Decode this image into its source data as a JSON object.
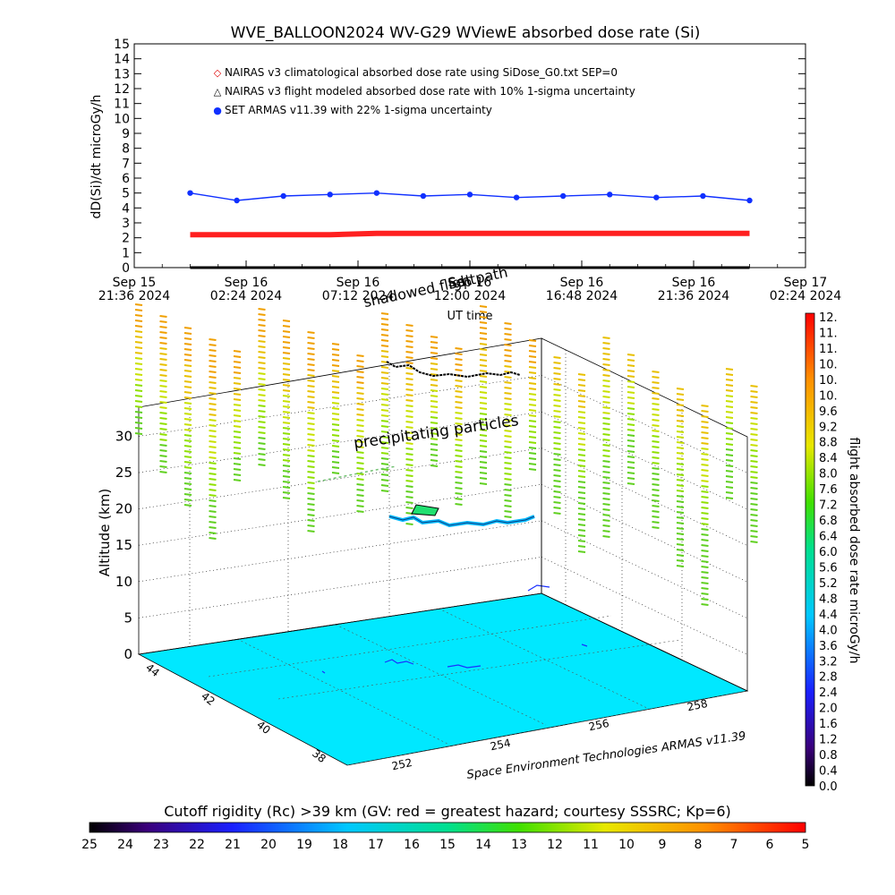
{
  "top_chart": {
    "title": "WVE_BALLOON2024 WV-G29 WViewE absorbed dose rate (Si)",
    "ylabel": "dD(Si)/dt microGy/h",
    "xlabel": "UT time",
    "y_ticks": [
      "0",
      "1",
      "2",
      "3",
      "4",
      "5",
      "6",
      "7",
      "8",
      "9",
      "10",
      "11",
      "12",
      "13",
      "14",
      "15"
    ],
    "x_ticks": [
      {
        "date": "Sep 15",
        "time": "21:36 2024"
      },
      {
        "date": "Sep 16",
        "time": "02:24 2024"
      },
      {
        "date": "Sep 16",
        "time": "07:12 2024"
      },
      {
        "date": "Sep 16",
        "time": "12:00 2024"
      },
      {
        "date": "Sep 16",
        "time": "16:48 2024"
      },
      {
        "date": "Sep 16",
        "time": "21:36 2024"
      },
      {
        "date": "Sep 17",
        "time": "02:24 2024"
      }
    ],
    "legend": [
      {
        "marker": "◇",
        "text": "NAIRAS v3 climatological absorbed dose rate using SiDose_G0.txt SEP=0",
        "color": "#e00000"
      },
      {
        "marker": "△",
        "text": "NAIRAS v3 flight modeled absorbed dose rate with 10% 1-sigma uncertainty",
        "color": "#000000"
      },
      {
        "marker": "●",
        "text": "SET ARMAS v11.39 with 22% 1-sigma uncertainty",
        "color": "#1030ff"
      }
    ],
    "overlay_labels": {
      "shadowed_flight": "shadowed flight",
      "sat_path": "Sat path"
    },
    "colors": {
      "armas": "#1030ff",
      "climatological": "#ff2020",
      "modeled": "#000000"
    }
  },
  "chart_data": {
    "type": "line",
    "title": "WVE_BALLOON2024 WV-G29 WViewE absorbed dose rate (Si)",
    "xlabel": "UT time",
    "ylabel": "dD(Si)/dt microGy/h",
    "xlim": [
      "2024-09-15 21:36",
      "2024-09-17 02:24"
    ],
    "ylim": [
      0,
      15
    ],
    "grid": false,
    "legend": "top-left inside",
    "x": [
      "2024-09-16 00:00",
      "2024-09-16 02:00",
      "2024-09-16 04:00",
      "2024-09-16 06:00",
      "2024-09-16 08:00",
      "2024-09-16 10:00",
      "2024-09-16 12:00",
      "2024-09-16 14:00",
      "2024-09-16 16:00",
      "2024-09-16 18:00",
      "2024-09-16 20:00",
      "2024-09-16 22:00",
      "2024-09-17 00:00"
    ],
    "series": [
      {
        "name": "NAIRAS v3 climatological absorbed dose rate using SiDose_G0.txt SEP=0",
        "values": [
          2.2,
          2.2,
          2.2,
          2.2,
          2.3,
          2.3,
          2.3,
          2.3,
          2.3,
          2.3,
          2.3,
          2.3,
          2.3
        ]
      },
      {
        "name": "NAIRAS v3 flight modeled absorbed dose rate with 10% 1-sigma uncertainty",
        "values": [
          0,
          0,
          0,
          0,
          0,
          0,
          0,
          0,
          0,
          0,
          0,
          0,
          0
        ]
      },
      {
        "name": "SET ARMAS v11.39 with 22% 1-sigma uncertainty",
        "values": [
          5.0,
          4.5,
          4.8,
          4.9,
          5.0,
          4.8,
          4.9,
          4.7,
          4.8,
          4.9,
          4.7,
          4.8,
          4.5
        ]
      }
    ]
  },
  "map_3d": {
    "ylabel": "Altitude (km)",
    "z_ticks": [
      "0",
      "5",
      "10",
      "15",
      "20",
      "25",
      "30"
    ],
    "lat_ticks": [
      "44",
      "42",
      "40",
      "38"
    ],
    "lon_ticks": [
      "252",
      "254",
      "256",
      "258"
    ],
    "annotation": "precipitating particles",
    "credit": "Space Environment Technologies ARMAS v11.39"
  },
  "vertical_colorbar": {
    "label": "flight absorbed dose rate microGy/h",
    "ticks": [
      "12.",
      "11.",
      "11.",
      "10.",
      "10.",
      "10.",
      "9.6",
      "9.2",
      "8.8",
      "8.4",
      "8.0",
      "7.6",
      "7.2",
      "6.8",
      "6.4",
      "6.0",
      "5.6",
      "5.2",
      "4.8",
      "4.4",
      "4.0",
      "3.6",
      "3.2",
      "2.8",
      "2.4",
      "2.0",
      "1.6",
      "1.2",
      "0.8",
      "0.4",
      "0.0"
    ]
  },
  "horizontal_colorbar": {
    "label": "Cutoff rigidity (Rc) >39 km (GV: red = greatest hazard; courtesy SSSRC; Kp=6)",
    "ticks": [
      "25",
      "24",
      "23",
      "22",
      "21",
      "20",
      "19",
      "18",
      "17",
      "16",
      "15",
      "14",
      "13",
      "12",
      "11",
      "10",
      "9",
      "8",
      "7",
      "6",
      "5"
    ]
  }
}
